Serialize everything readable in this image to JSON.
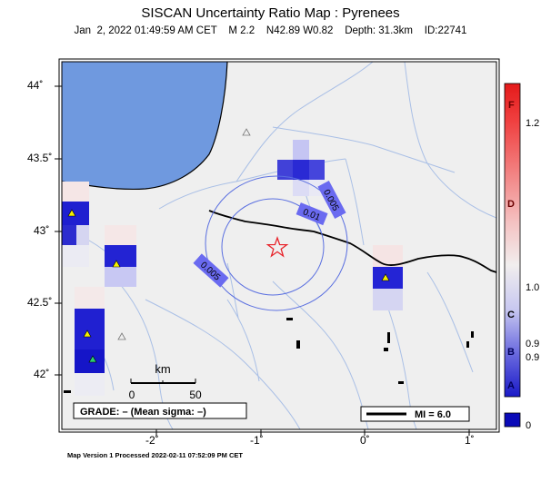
{
  "header": {
    "title": "SISCAN Uncertainty Ratio Map : Pyrenees",
    "subtitle": "Jan  2, 2022 01:49:59 AM CET    M 2.2    N42.89 W0.82    Depth: 31.3km    ID:22741"
  },
  "axes": {
    "y_labels": [
      "44˚",
      "43.5˚",
      "43˚",
      "42.5˚",
      "42˚"
    ],
    "x_labels": [
      "-2˚",
      "-1˚",
      "0˚",
      "1˚"
    ]
  },
  "contours": [
    "0.005",
    "0.01",
    "0.005",
    "0.005"
  ],
  "scale_bar": {
    "unit": "km",
    "min": "0",
    "max": "50"
  },
  "grade_box": "GRADE: – (Mean sigma: –)",
  "mi_legend": "MI = 6.0",
  "colorbar": {
    "letters": [
      "F",
      "D",
      "C",
      "B",
      "A"
    ],
    "values": [
      "1.2",
      "1.0",
      "0.9",
      "0.9",
      "0"
    ]
  },
  "footer": "Map Version 1 Processed 2022-02-11 07:52:09 PM CET",
  "colors": {
    "sea": "#6f99df",
    "land": "#efefef",
    "river": "#9fb7e3",
    "contour": "#5a6fe0",
    "epicenter": "#e8242b"
  }
}
